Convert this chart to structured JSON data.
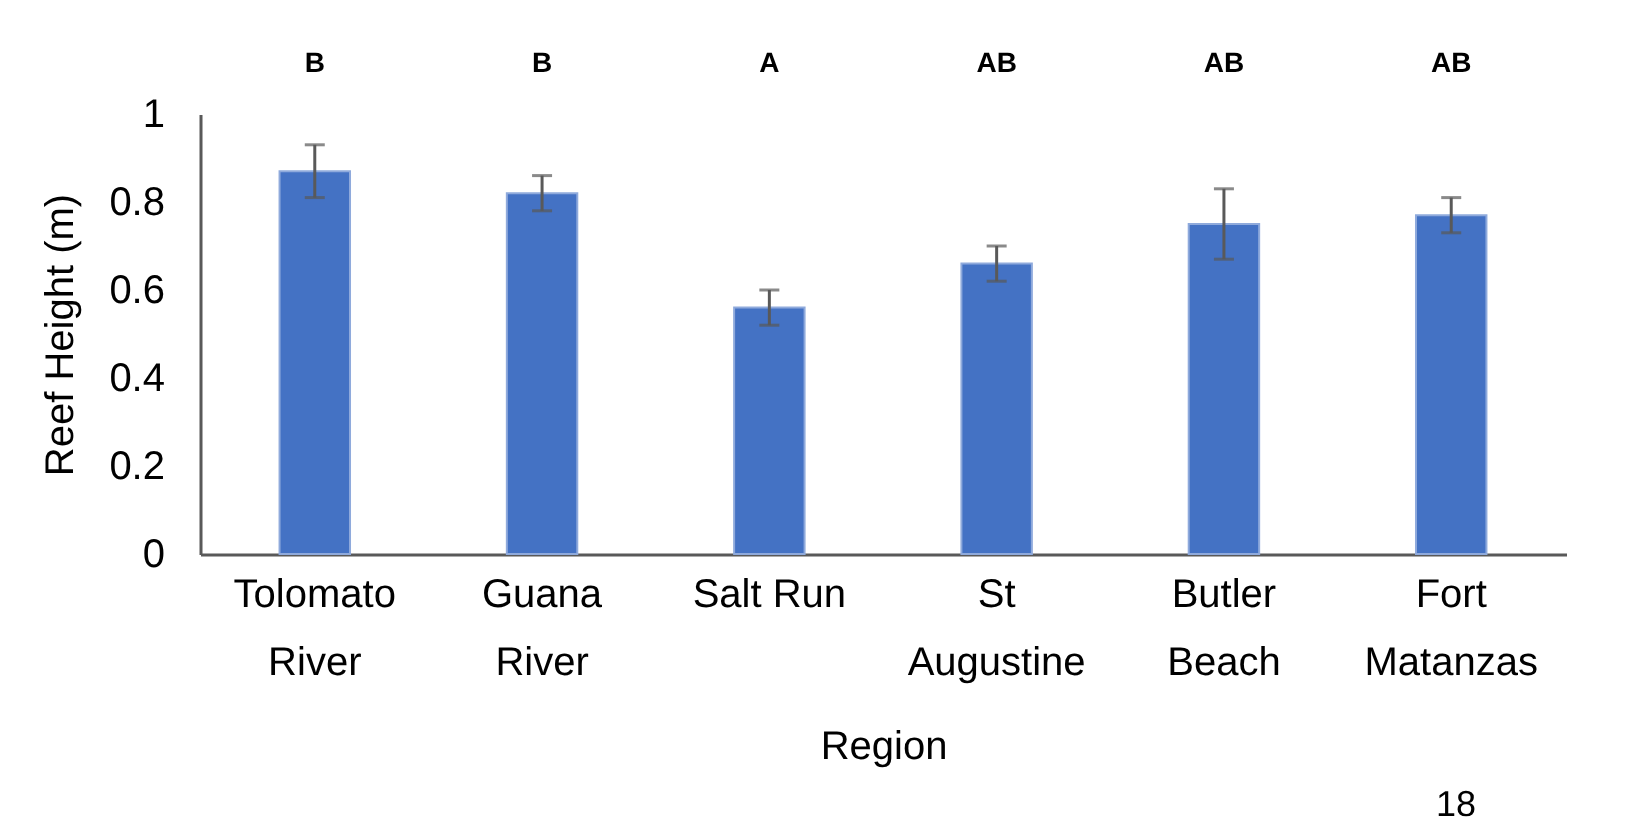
{
  "chart_data": {
    "type": "bar",
    "xlabel": "Region",
    "ylabel": "Reef Height (m)",
    "categories": [
      "Tolomato\nRiver",
      "Guana\nRiver",
      "Salt Run",
      "St\nAugustine",
      "Butler\nBeach",
      "Fort\nMatanzas"
    ],
    "values": [
      0.87,
      0.82,
      0.56,
      0.66,
      0.75,
      0.77
    ],
    "errors": [
      0.06,
      0.04,
      0.04,
      0.04,
      0.08,
      0.04
    ],
    "color": "#4472c4",
    "ylim": [
      0,
      1
    ],
    "yticks": [
      0,
      0.2,
      0.4,
      0.6,
      0.8,
      1
    ],
    "grid": false,
    "annotations": [
      "B",
      "B",
      "A",
      "AB",
      "AB",
      "AB",
      "18"
    ]
  }
}
